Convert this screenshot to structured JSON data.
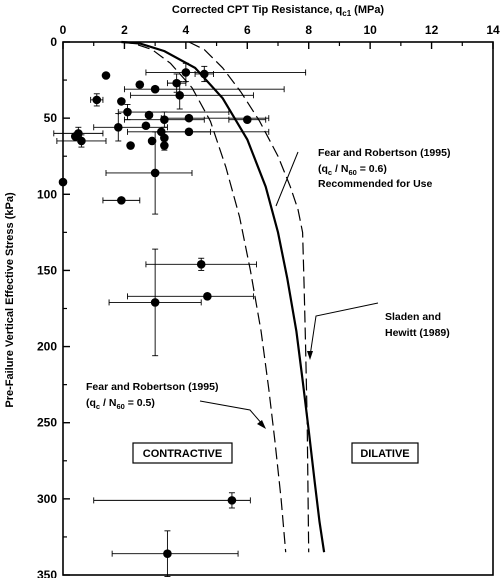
{
  "chart_data": {
    "type": "scatter",
    "title": "",
    "xlabel": "Corrected CPT Tip Resistance, q_c1 (MPa)",
    "xlabel_main": "Corrected CPT Tip Resistance, q",
    "xlabel_sub": "c1",
    "xlabel_unit": "(MPa)",
    "ylabel": "Pre-Failure Vertical Effective Stress (kPa)",
    "x_axis_position": "top",
    "xlim": [
      0,
      14
    ],
    "ylim": [
      0,
      350
    ],
    "y_inverted": true,
    "xticks": [
      "0",
      "2",
      "4",
      "6",
      "8",
      "10",
      "12",
      "14"
    ],
    "yticks": [
      "0",
      "50",
      "100",
      "150",
      "200",
      "250",
      "300",
      "350"
    ],
    "grid": false,
    "points": [
      {
        "x": 1.4,
        "y": 22,
        "xerr": 0,
        "yerr": 0
      },
      {
        "x": 4.0,
        "y": 20,
        "xerr": [
          1.3,
          3.9
        ],
        "yerr": 6
      },
      {
        "x": 4.6,
        "y": 21,
        "xerr": 0.3,
        "yerr": 5
      },
      {
        "x": 2.5,
        "y": 28,
        "xerr": 0,
        "yerr": 0
      },
      {
        "x": 3.0,
        "y": 31,
        "xerr": [
          1.0,
          4.2
        ],
        "yerr": 0
      },
      {
        "x": 3.7,
        "y": 27,
        "xerr": 0.3,
        "yerr": 6
      },
      {
        "x": 3.8,
        "y": 35,
        "xerr": [
          1.6,
          2.4
        ],
        "yerr": 9
      },
      {
        "x": 1.1,
        "y": 38,
        "xerr": 0.2,
        "yerr": 4
      },
      {
        "x": 1.9,
        "y": 39,
        "xerr": 0,
        "yerr": 0
      },
      {
        "x": 2.1,
        "y": 46,
        "xerr": [
          0.3,
          3.3
        ],
        "yerr": 5
      },
      {
        "x": 2.8,
        "y": 48,
        "xerr": 0,
        "yerr": 0
      },
      {
        "x": 3.3,
        "y": 51,
        "xerr": [
          1.3,
          1.3
        ],
        "yerr": 5
      },
      {
        "x": 4.1,
        "y": 50,
        "xerr": [
          0.9,
          2.6
        ],
        "yerr": 0
      },
      {
        "x": 6.0,
        "y": 51,
        "xerr": 0.6,
        "yerr": 0
      },
      {
        "x": 1.8,
        "y": 56,
        "xerr": [
          0.8,
          1.6
        ],
        "yerr": 9
      },
      {
        "x": 2.7,
        "y": 55,
        "xerr": 0,
        "yerr": 0
      },
      {
        "x": 0.5,
        "y": 60,
        "xerr": 0.8,
        "yerr": 4
      },
      {
        "x": 0.4,
        "y": 62,
        "xerr": 0,
        "yerr": 0
      },
      {
        "x": 0.6,
        "y": 65,
        "xerr": 0.8,
        "yerr": 4
      },
      {
        "x": 2.2,
        "y": 68,
        "xerr": 0,
        "yerr": 0
      },
      {
        "x": 3.2,
        "y": 59,
        "xerr": [
          1.1,
          1.6
        ],
        "yerr": 0
      },
      {
        "x": 3.3,
        "y": 63,
        "xerr": 0,
        "yerr": 4
      },
      {
        "x": 2.9,
        "y": 65,
        "xerr": 0,
        "yerr": 0
      },
      {
        "x": 3.3,
        "y": 68,
        "xerr": 0,
        "yerr": 3
      },
      {
        "x": 4.1,
        "y": 59,
        "xerr": [
          0.9,
          2.6
        ],
        "yerr": 0
      },
      {
        "x": 3.0,
        "y": 86,
        "xerr": [
          1.6,
          1.2
        ],
        "yerr": 27
      },
      {
        "x": 0.0,
        "y": 92,
        "xerr": 0,
        "yerr": 0
      },
      {
        "x": 1.9,
        "y": 104,
        "xerr": 0.6,
        "yerr": 0
      },
      {
        "x": 4.5,
        "y": 146,
        "xerr": [
          1.8,
          1.8
        ],
        "yerr": 4
      },
      {
        "x": 4.7,
        "y": 167,
        "xerr": [
          2.6,
          1.5
        ],
        "yerr": 0
      },
      {
        "x": 3.0,
        "y": 171,
        "xerr": [
          1.5,
          1.5
        ],
        "yerr": 35
      },
      {
        "x": 5.5,
        "y": 301,
        "xerr": [
          4.5,
          0.6
        ],
        "yerr": 5
      },
      {
        "x": 3.4,
        "y": 336,
        "xerr": [
          1.8,
          2.3
        ],
        "yerr": 15
      }
    ],
    "curves": [
      {
        "name": "Fear and Robertson (1995) (qc / N60 = 0.6) Recommended for Use",
        "style": "solid",
        "x": [
          1.9,
          2.5,
          3.3,
          4.3,
          5.2,
          6.0,
          6.6,
          7.0,
          7.3,
          7.6,
          7.8,
          8.0,
          8.2,
          8.35,
          8.5
        ],
        "y": [
          0,
          1,
          6,
          17,
          37,
          64,
          95,
          125,
          155,
          190,
          222,
          255,
          290,
          315,
          335
        ]
      },
      {
        "name": "Fear and Robertson (1995) (qc / N60 = 0.5)",
        "style": "dashed",
        "x": [
          1.9,
          2.3,
          2.9,
          3.5,
          4.2,
          4.8,
          5.3,
          5.75,
          6.1,
          6.45,
          6.7,
          6.9,
          7.1,
          7.25
        ],
        "y": [
          0,
          1,
          5,
          14,
          30,
          52,
          82,
          115,
          150,
          190,
          228,
          262,
          300,
          335
        ]
      },
      {
        "name": "Sladen and Hewitt (1989)",
        "style": "dashed",
        "x": [
          4.1,
          4.6,
          5.2,
          5.8,
          6.4,
          7.0,
          7.4,
          7.65,
          7.8,
          7.85,
          7.9,
          7.95,
          8.0
        ],
        "y": [
          0,
          5,
          17,
          33,
          52,
          75,
          95,
          110,
          125,
          160,
          200,
          250,
          335
        ]
      }
    ],
    "annotations": {
      "fr06_line1": "Fear and Robertson (1995)",
      "fr06_line2_a": "(q",
      "fr06_line2_sub1": "c",
      "fr06_line2_b": " / N",
      "fr06_line2_sub2": "60",
      "fr06_line2_c": " = 0.6)",
      "fr06_line3": "Recommended for Use",
      "sh_line1": "Sladen and",
      "sh_line2": "Hewitt (1989)",
      "fr05_line1": "Fear and Robertson (1995)",
      "fr05_line2_a": "(q",
      "fr05_line2_sub1": "c",
      "fr05_line2_b": " / N",
      "fr05_line2_sub2": "60",
      "fr05_line2_c": " = 0.5)"
    },
    "regions": {
      "contractive": "CONTRACTIVE",
      "dilative": "DILATIVE"
    }
  }
}
